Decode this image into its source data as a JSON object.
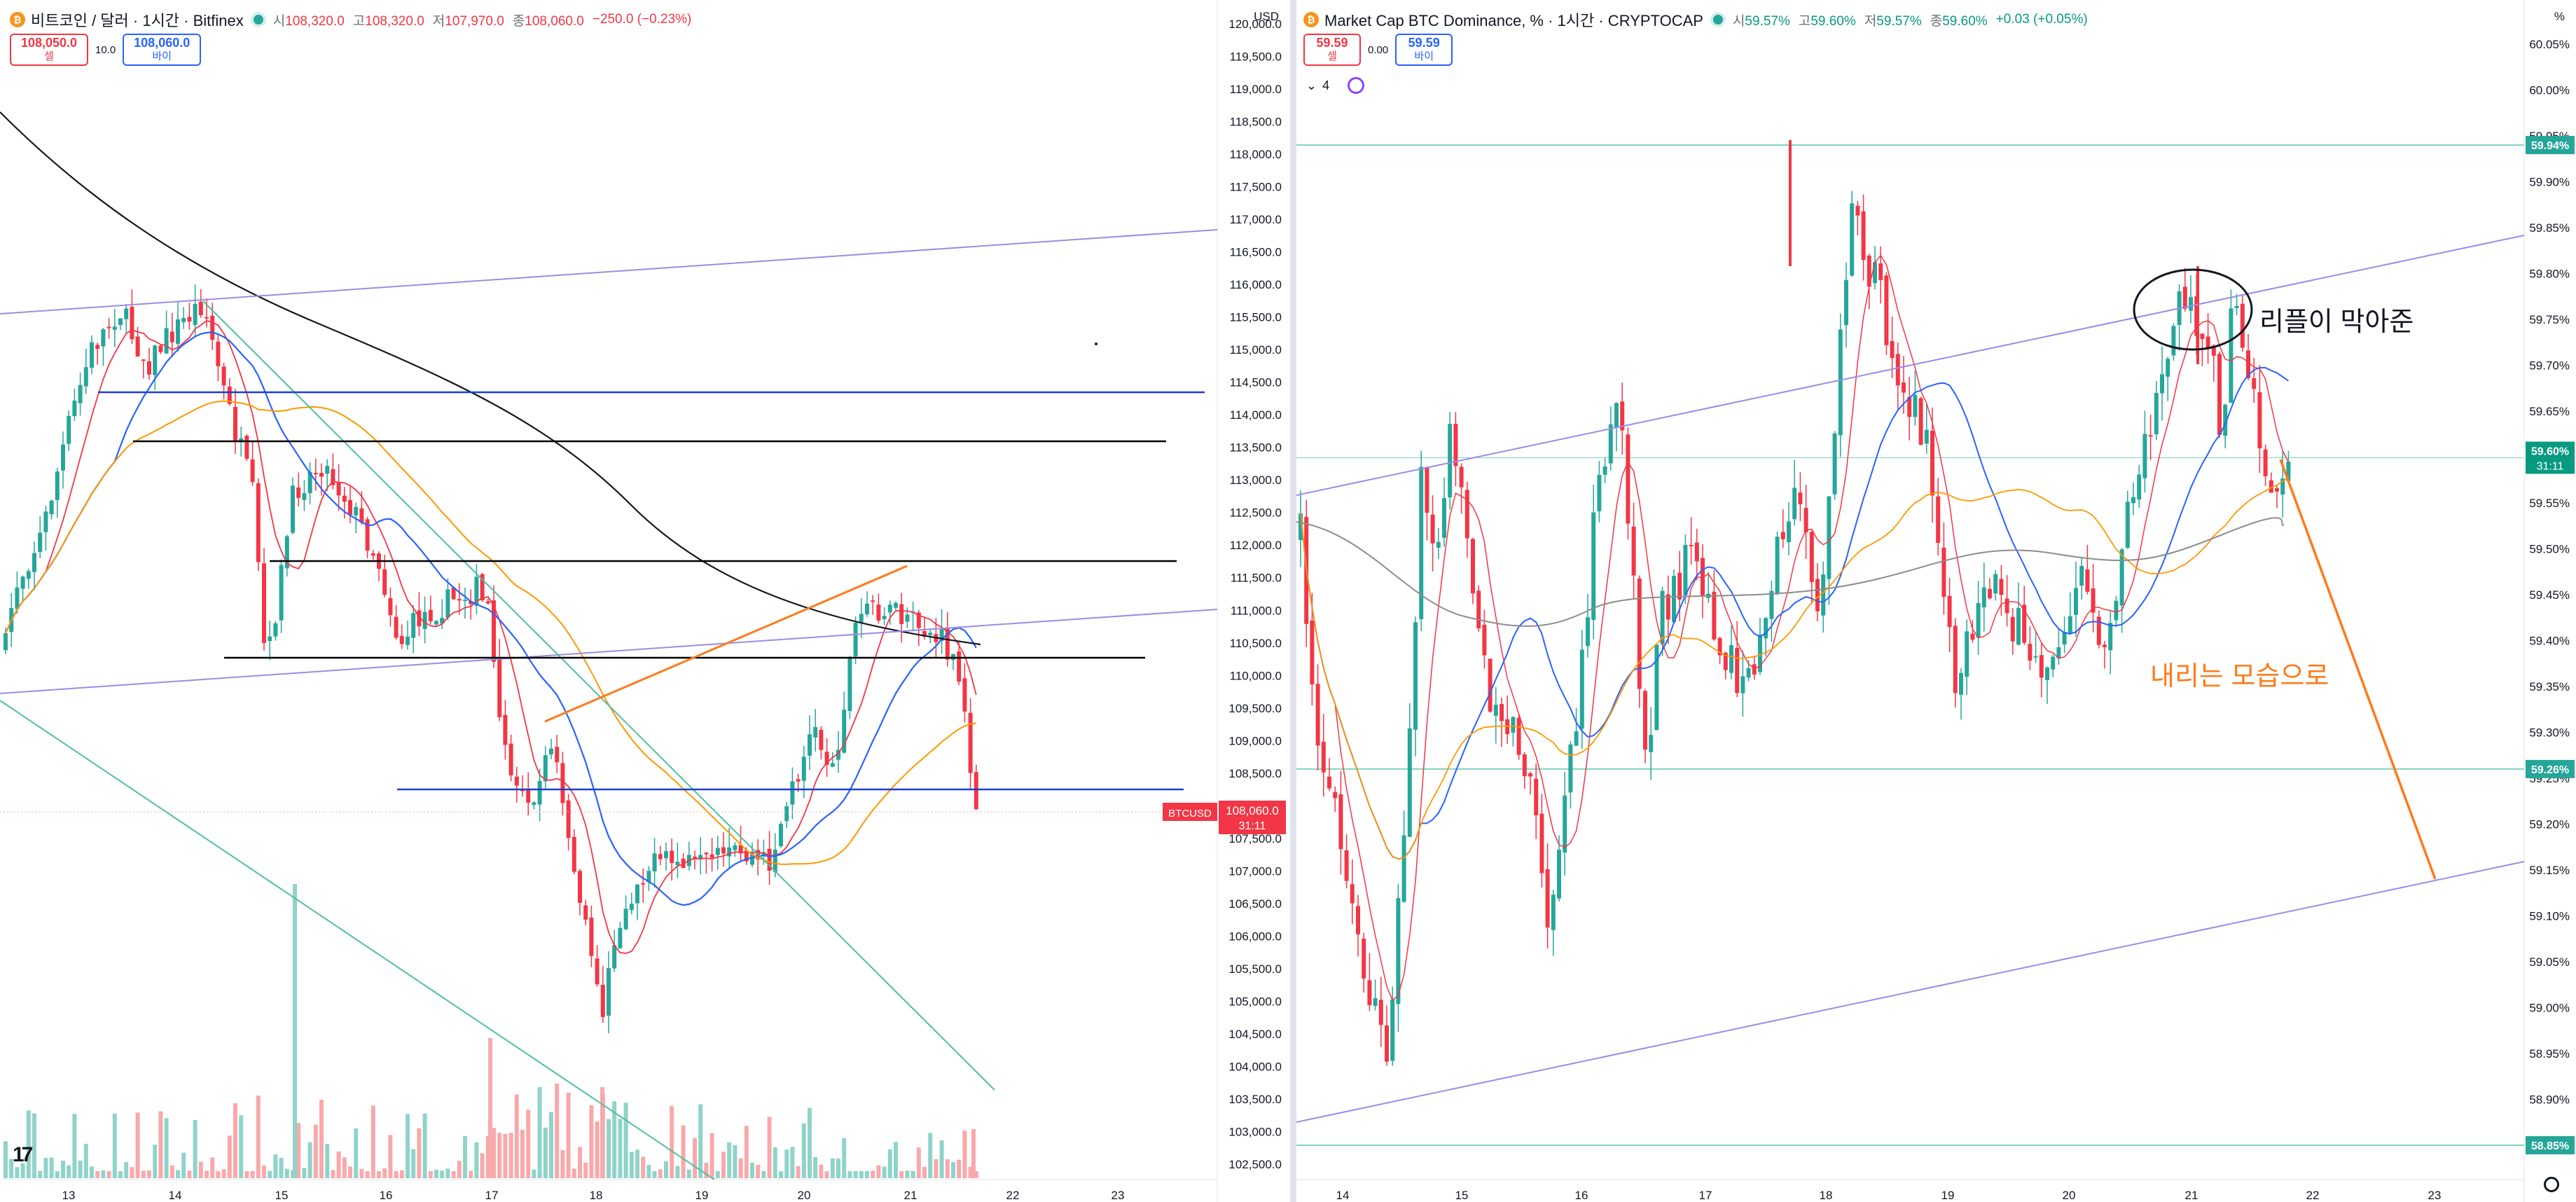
{
  "left": {
    "title": "비트코인 / 달러 · 1시간 · Bitfinex",
    "icon": "bitcoin-icon",
    "ohlc": [
      {
        "label": "시",
        "value": "108,320.0"
      },
      {
        "label": "고",
        "value": "108,320.0"
      },
      {
        "label": "저",
        "value": "107,970.0"
      },
      {
        "label": "종",
        "value": "108,060.0"
      }
    ],
    "change": "−250.0 (−0.23%)",
    "sell": {
      "value": "108,050.0",
      "label": "셀"
    },
    "buy": {
      "value": "108,060.0",
      "label": "바이"
    },
    "spread": "10.0",
    "currency": "USD",
    "ticker_tag": "BTCUSD",
    "last_price": "108,060.0",
    "countdown": "31:11",
    "y_labels": [
      "120,000.0",
      "119,500.0",
      "119,000.0",
      "118,500.0",
      "118,000.0",
      "117,500.0",
      "117,000.0",
      "116,500.0",
      "116,000.0",
      "115,500.0",
      "115,000.0",
      "114,500.0",
      "114,000.0",
      "113,500.0",
      "113,000.0",
      "112,500.0",
      "112,000.0",
      "111,500.0",
      "111,000.0",
      "110,500.0",
      "110,000.0",
      "109,500.0",
      "109,000.0",
      "108,500.0",
      "108,000.0",
      "107,500.0",
      "107,000.0",
      "106,500.0",
      "106,000.0",
      "105,500.0",
      "105,000.0",
      "104,500.0",
      "104,000.0",
      "103,500.0",
      "103,000.0",
      "102,500.0"
    ],
    "x_labels": [
      "13",
      "14",
      "15",
      "16",
      "17",
      "18",
      "19",
      "20",
      "21",
      "22",
      "23"
    ]
  },
  "right": {
    "title": "Market Cap BTC Dominance, % · 1시간 · CRYPTOCAP",
    "icon": "bitcoin-icon",
    "ohlc": [
      {
        "label": "시",
        "value": "59.57%"
      },
      {
        "label": "고",
        "value": "59.60%"
      },
      {
        "label": "저",
        "value": "59.57%"
      },
      {
        "label": "종",
        "value": "59.60%"
      }
    ],
    "change": "+0.03 (+0.05%)",
    "sell": {
      "value": "59.59",
      "label": "셀"
    },
    "buy": {
      "value": "59.59",
      "label": "바이"
    },
    "spread": "0.00",
    "indicator_count": "4",
    "currency": "%",
    "last_price": "59.60%",
    "countdown": "31:11",
    "level_tags": [
      "59.94%",
      "59.26%",
      "58.85%"
    ],
    "y_labels": [
      "60.05%",
      "60.00%",
      "59.95%",
      "59.90%",
      "59.85%",
      "59.80%",
      "59.75%",
      "59.70%",
      "59.65%",
      "59.60%",
      "59.55%",
      "59.50%",
      "59.45%",
      "59.40%",
      "59.35%",
      "59.30%",
      "59.25%",
      "59.20%",
      "59.15%",
      "59.10%",
      "59.05%",
      "59.00%",
      "58.95%",
      "58.90%"
    ],
    "x_labels": [
      "14",
      "15",
      "16",
      "17",
      "18",
      "19",
      "20",
      "21",
      "22",
      "23"
    ],
    "annotation_black": "리플이 막아준",
    "annotation_orange": "내리는 모습으로"
  },
  "colors": {
    "up": "#26a69a",
    "down": "#f23645",
    "volume_up": "#8fd3c9",
    "volume_down": "#f7a9ab",
    "ma_red": "#f23645",
    "ma_blue": "#2962ff",
    "ma_orange": "#ff9800",
    "ma_black": "#131722",
    "trend_lavender": "#9c8ce6",
    "trend_green": "#4fbfa3",
    "hline_blue": "#1d3fc9",
    "hline_black": "#000000",
    "hline_teal": "#7fd2bf",
    "drawing_orange": "#ff7a1a"
  }
}
